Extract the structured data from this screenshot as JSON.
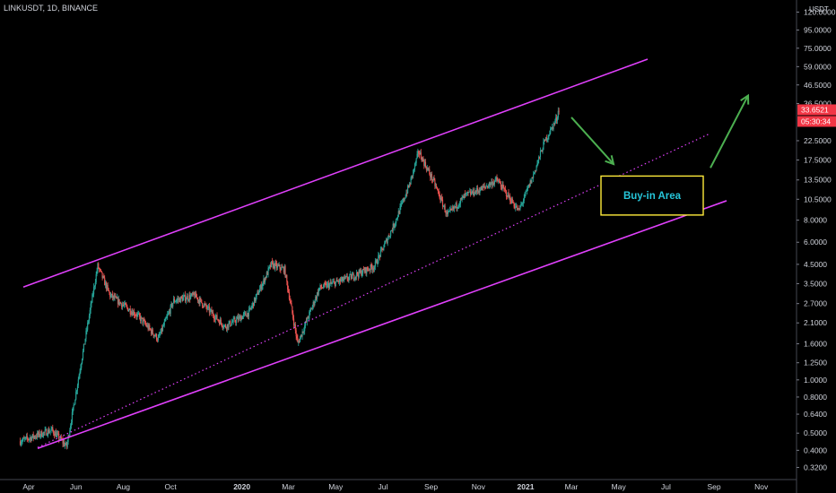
{
  "header": {
    "symbol_line": "LINKUSDT, 1D, BINANCE"
  },
  "price_scale": {
    "unit": "USDT",
    "labels": [
      "120.0000",
      "95.0000",
      "75.0000",
      "59.0000",
      "46.5000",
      "36.5000",
      "22.5000",
      "17.5000",
      "13.5000",
      "10.5000",
      "8.0000",
      "6.0000",
      "4.5000",
      "3.5000",
      "2.7000",
      "2.1000",
      "1.6000",
      "1.2500",
      "1.0000",
      "0.8000",
      "0.6400",
      "0.5000",
      "0.4000",
      "0.3200"
    ],
    "label_values": [
      120,
      95,
      75,
      59,
      46.5,
      36.5,
      22.5,
      17.5,
      13.5,
      10.5,
      8,
      6,
      4.5,
      3.5,
      2.7,
      2.1,
      1.6,
      1.25,
      1,
      0.8,
      0.64,
      0.5,
      0.4,
      0.32
    ],
    "log_scale": true
  },
  "time_scale": {
    "labels": [
      "Apr",
      "Jun",
      "Aug",
      "Oct",
      "2020",
      "Mar",
      "May",
      "Jul",
      "Sep",
      "Nov",
      "2021",
      "Mar",
      "May",
      "Jul",
      "Sep",
      "Nov"
    ],
    "dates": [
      "2019-04-01",
      "2019-06-01",
      "2019-08-01",
      "2019-10-01",
      "2020-01-01",
      "2020-03-01",
      "2020-05-01",
      "2020-07-01",
      "2020-09-01",
      "2020-11-01",
      "2021-01-01",
      "2021-03-01",
      "2021-05-01",
      "2021-07-01",
      "2021-09-01",
      "2021-11-01"
    ],
    "bold_labels": [
      "2020",
      "2021"
    ]
  },
  "price_badge": {
    "price": "33.6521",
    "countdown": "05:30:34",
    "color": "#f23645"
  },
  "annotation": {
    "text": "Buy-in Area",
    "text_color": "#26c6da",
    "box_color": "#ffeb3b"
  },
  "colors": {
    "up": "#26a69a",
    "down": "#ef5350",
    "channel": "#e040fb",
    "arrow": "#4caf50",
    "background": "#000000"
  },
  "chart_data": {
    "type": "line",
    "title": "LINKUSDT, 1D, BINANCE",
    "xlabel": "",
    "ylabel": "USDT",
    "y_scale": "log",
    "ylim": [
      0.3,
      125
    ],
    "grid": false,
    "series": [
      {
        "x": [
          "2019-03-21",
          "2019-05-01",
          "2019-05-20",
          "2019-06-29",
          "2019-07-15",
          "2019-08-20",
          "2019-09-15",
          "2019-10-05",
          "2019-11-01",
          "2019-12-10",
          "2020-01-10",
          "2020-02-08",
          "2020-02-25",
          "2020-03-13",
          "2020-04-10",
          "2020-05-20",
          "2020-06-20",
          "2020-07-15",
          "2020-08-05",
          "2020-08-16",
          "2020-09-05",
          "2020-09-22",
          "2020-10-15",
          "2020-11-05",
          "2020-11-25",
          "2020-12-23",
          "2021-01-10",
          "2021-01-25",
          "2021-02-10",
          "2021-02-13"
        ],
        "values": [
          0.45,
          0.52,
          0.42,
          4.4,
          3.0,
          2.3,
          1.7,
          2.8,
          3.0,
          2.0,
          2.4,
          4.5,
          4.2,
          1.6,
          3.3,
          3.8,
          4.4,
          7.5,
          13.0,
          19.5,
          13.0,
          8.5,
          11.0,
          12.0,
          13.5,
          9.0,
          14.0,
          22.0,
          30.0,
          34.5
        ]
      }
    ],
    "current_price": 33.6521
  }
}
